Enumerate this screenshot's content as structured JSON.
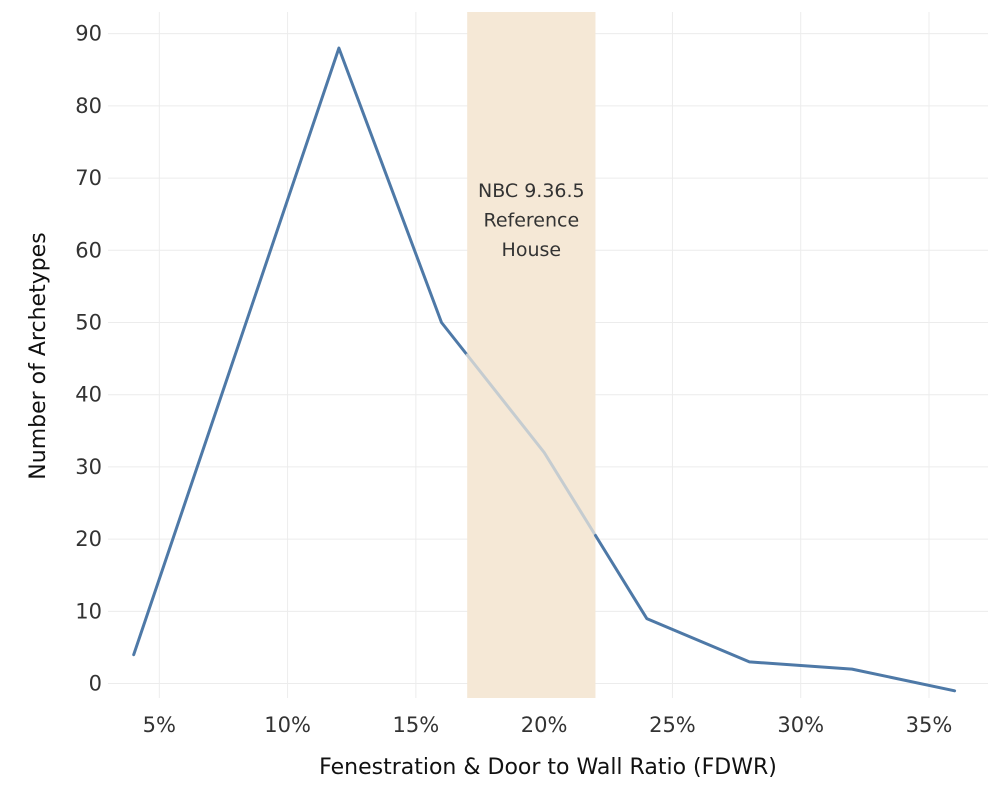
{
  "chart_data": {
    "type": "line",
    "title": "",
    "xlabel": "Fenestration & Door to Wall Ratio (FDWR)",
    "ylabel": "Number of Archetypes",
    "xlim": [
      0.03,
      0.373
    ],
    "ylim": [
      -2,
      93
    ],
    "x_ticks": [
      0.05,
      0.1,
      0.15,
      0.2,
      0.25,
      0.3,
      0.35
    ],
    "x_tick_labels": [
      "5%",
      "10%",
      "15%",
      "20%",
      "25%",
      "30%",
      "35%"
    ],
    "y_ticks": [
      0,
      10,
      20,
      30,
      40,
      50,
      60,
      70,
      80,
      90
    ],
    "y_tick_labels": [
      "0",
      "10",
      "20",
      "30",
      "40",
      "50",
      "60",
      "70",
      "80",
      "90"
    ],
    "grid": true,
    "series": [
      {
        "x": [
          0.04,
          0.12,
          0.16,
          0.2,
          0.24,
          0.28,
          0.32,
          0.36
        ],
        "y": [
          4,
          88,
          50,
          32,
          9,
          3,
          2,
          -1
        ],
        "color": "#4e79a7",
        "highlight_color": "#c5ccd0"
      }
    ],
    "annotations": [
      {
        "type": "band",
        "x_range": [
          0.17,
          0.22
        ],
        "color": "#f5e8d6",
        "label_lines": [
          "NBC 9.36.5",
          "Reference",
          "House"
        ]
      }
    ]
  }
}
